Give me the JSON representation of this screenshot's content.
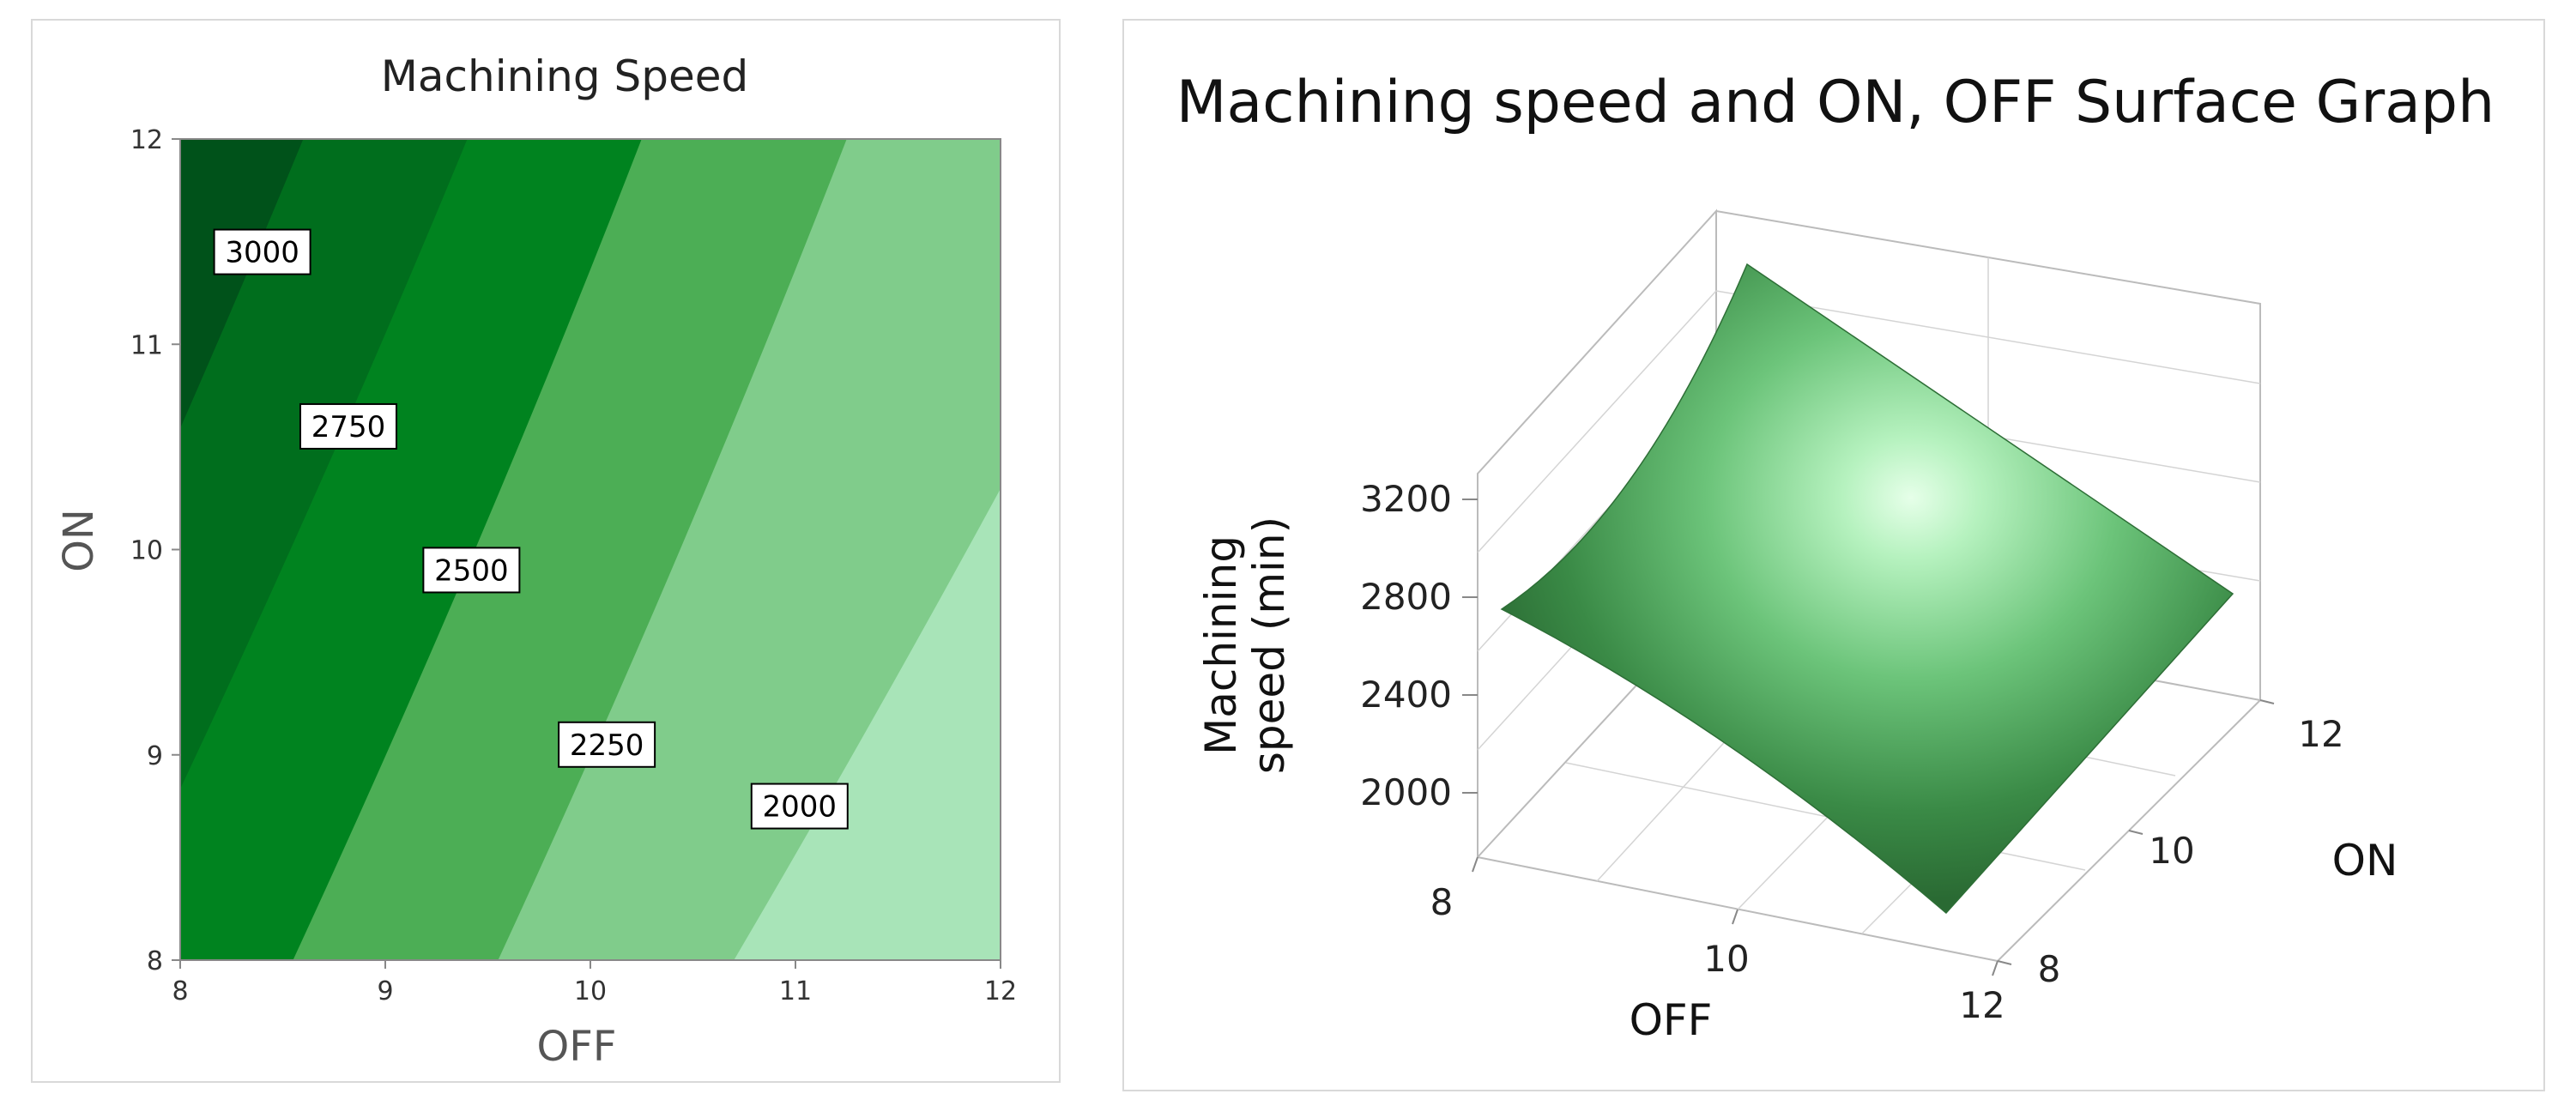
{
  "chart_data": [
    {
      "type": "contour",
      "title": "Machining Speed",
      "xlabel": "OFF",
      "ylabel": "ON",
      "xlim": [
        8,
        12
      ],
      "ylim": [
        8,
        12
      ],
      "xticks": [
        "8",
        "9",
        "10",
        "11",
        "12"
      ],
      "yticks": [
        "8",
        "9",
        "10",
        "11",
        "12"
      ],
      "contour_levels": [
        {
          "value": 3000,
          "label": "3000",
          "color": "#006e1d",
          "x_at_bottom": 6.8,
          "x_at_top": 8.6
        },
        {
          "value": 2750,
          "label": "2750",
          "color": "#00831f",
          "x_at_bottom": 7.6,
          "x_at_top": 9.4
        },
        {
          "value": 2500,
          "label": "2500",
          "color": "#4cae55",
          "x_at_bottom": 8.55,
          "x_at_top": 10.25
        },
        {
          "value": 2250,
          "label": "2250",
          "color": "#80cc8b",
          "x_at_bottom": 9.55,
          "x_at_top": 11.25
        },
        {
          "value": 2000,
          "label": "2000",
          "color": "#a8e4b8",
          "x_at_bottom": 10.7,
          "x_at_top": 12.9
        }
      ],
      "region_colors": [
        "#00521a",
        "#006e1d",
        "#00831f",
        "#4cae55",
        "#80cc8b",
        "#a8e4b8"
      ],
      "labels_at": [
        {
          "text": "3000",
          "x": 8.4,
          "y": 11.45
        },
        {
          "text": "2750",
          "x": 8.82,
          "y": 10.6
        },
        {
          "text": "2500",
          "x": 9.42,
          "y": 9.9
        },
        {
          "text": "2250",
          "x": 10.08,
          "y": 9.05
        },
        {
          "text": "2000",
          "x": 11.02,
          "y": 8.75
        }
      ]
    },
    {
      "type": "surface",
      "title": "Machining speed and ON, OFF Surface Graph",
      "xlabel": "OFF",
      "ylabel": "ON",
      "zlabel_line1": "Machining",
      "zlabel_line2": "speed (min)",
      "xticks": [
        "8",
        "10",
        "12"
      ],
      "yticks": [
        "8",
        "10",
        "12"
      ],
      "zticks": [
        "2000",
        "2400",
        "2800",
        "3200"
      ],
      "corners": [
        {
          "off": 8,
          "on": 8,
          "speed": 2600
        },
        {
          "off": 8,
          "on": 12,
          "speed": 3300
        },
        {
          "off": 12,
          "on": 8,
          "speed": 1600
        },
        {
          "off": 12,
          "on": 12,
          "speed": 2400
        }
      ],
      "surface_color": "#4fa85a"
    }
  ]
}
